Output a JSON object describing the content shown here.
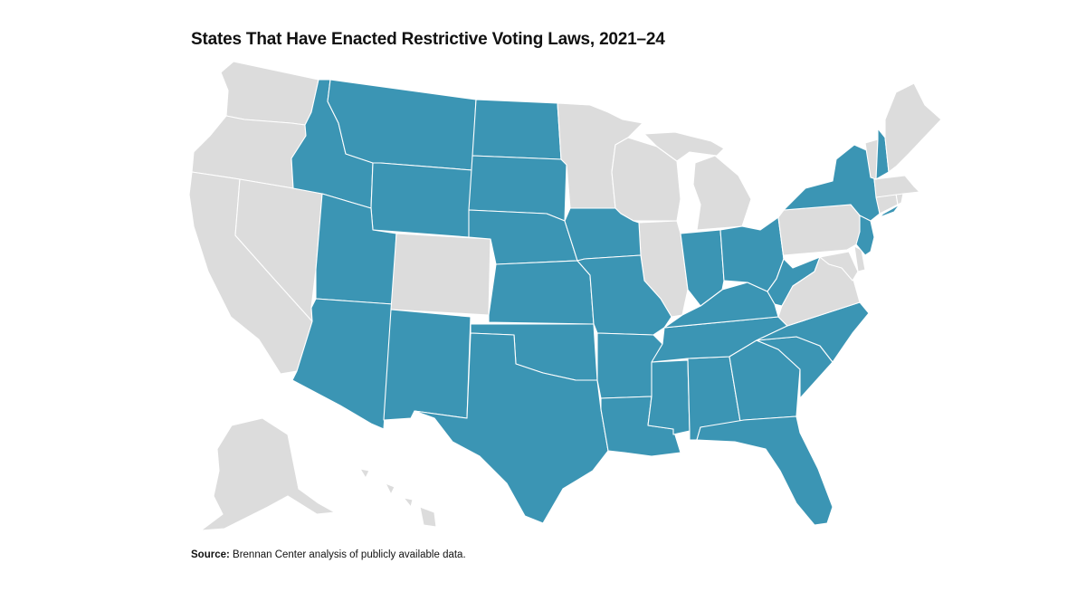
{
  "title": "States That Have Enacted Restrictive Voting Laws, 2021–24",
  "source_label": "Source:",
  "source_text": " Brennan Center analysis of publicly available data.",
  "colors": {
    "restrictive": "#3b95b4",
    "other": "#dcdcdc"
  },
  "states_restrictive": [
    "ID",
    "MT",
    "WY",
    "ND",
    "SD",
    "NE",
    "KS",
    "OK",
    "TX",
    "NM",
    "AZ",
    "UT",
    "IA",
    "MO",
    "AR",
    "LA",
    "MS",
    "AL",
    "GA",
    "FL",
    "SC",
    "NC",
    "TN",
    "KY",
    "IN",
    "OH",
    "WV",
    "NY",
    "NJ",
    "NH"
  ],
  "states_other": [
    "WA",
    "OR",
    "CA",
    "NV",
    "CO",
    "MN",
    "WI",
    "IL",
    "MI",
    "PA",
    "VA",
    "MD",
    "DE",
    "CT",
    "RI",
    "MA",
    "VT",
    "ME",
    "AK",
    "HI"
  ]
}
